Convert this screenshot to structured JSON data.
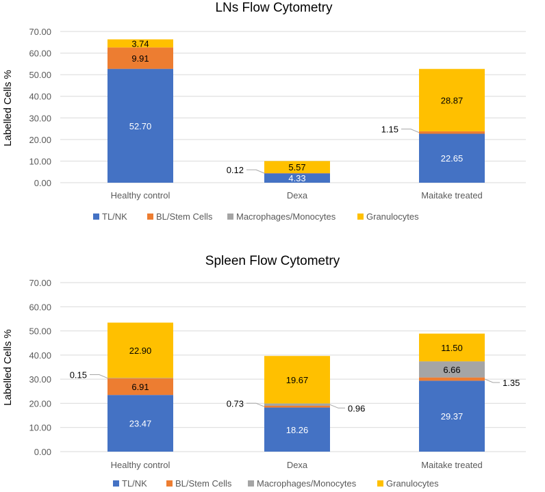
{
  "chart_data": [
    {
      "type": "bar",
      "stacked": true,
      "title": "LNs Flow Cytometry",
      "ylabel": "Labelled Cells %",
      "xlabel": "",
      "ylim": [
        0,
        70
      ],
      "yticks": [
        "0.00",
        "10.00",
        "20.00",
        "30.00",
        "40.00",
        "50.00",
        "60.00",
        "70.00"
      ],
      "grid": true,
      "legend_position": "bottom",
      "categories": [
        "Healthy control",
        "Dexa",
        "Maitake treated"
      ],
      "series": [
        {
          "name": "TL/NK",
          "color": "#4472C4",
          "values": [
            52.7,
            4.33,
            22.65
          ],
          "labels": [
            "52.70",
            "4.33",
            "22.65"
          ]
        },
        {
          "name": "BL/Stem Cells",
          "color": "#ED7D31",
          "values": [
            9.91,
            0.12,
            1.15
          ],
          "labels": [
            "9.91",
            "0.12",
            "1.15"
          ]
        },
        {
          "name": "Macrophages/Monocytes",
          "color": "#A5A5A5",
          "values": [
            0,
            0,
            0
          ],
          "labels": [
            "",
            "",
            ""
          ]
        },
        {
          "name": "Granulocytes",
          "color": "#FFC000",
          "values": [
            3.74,
            5.57,
            28.87
          ],
          "labels": [
            "3.74",
            "5.57",
            "28.87"
          ]
        }
      ]
    },
    {
      "type": "bar",
      "stacked": true,
      "title": "Spleen Flow Cytometry",
      "ylabel": "Labelled Cells %",
      "xlabel": "",
      "ylim": [
        0,
        70
      ],
      "yticks": [
        "0.00",
        "10.00",
        "20.00",
        "30.00",
        "40.00",
        "50.00",
        "60.00",
        "70.00"
      ],
      "grid": true,
      "legend_position": "bottom",
      "categories": [
        "Healthy control",
        "Dexa",
        "Maitake treated"
      ],
      "series": [
        {
          "name": "TL/NK",
          "color": "#4472C4",
          "values": [
            23.47,
            18.26,
            29.37
          ],
          "labels": [
            "23.47",
            "18.26",
            "29.37"
          ]
        },
        {
          "name": "BL/Stem Cells",
          "color": "#ED7D31",
          "values": [
            6.91,
            0.73,
            1.35
          ],
          "labels": [
            "6.91",
            "0.73",
            "1.35"
          ]
        },
        {
          "name": "Macrophages/Monocytes",
          "color": "#A5A5A5",
          "values": [
            0.15,
            0.96,
            6.66
          ],
          "labels": [
            "0.15",
            "0.96",
            "6.66"
          ]
        },
        {
          "name": "Granulocytes",
          "color": "#FFC000",
          "values": [
            22.9,
            19.67,
            11.5
          ],
          "labels": [
            "22.90",
            "19.67",
            "11.50"
          ]
        }
      ]
    }
  ]
}
